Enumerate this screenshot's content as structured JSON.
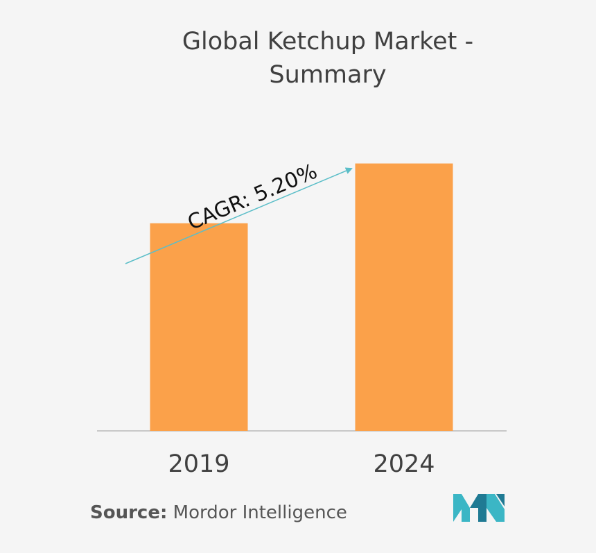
{
  "title": {
    "line1": "Global Ketchup Market -",
    "line2": "Summary"
  },
  "chart_data": {
    "type": "bar",
    "categories": [
      "2019",
      "2024"
    ],
    "values": [
      1.0,
      1.288
    ],
    "ylim": [
      0,
      1.3
    ],
    "title": "Global Ketchup Market - Summary",
    "annotation": "CAGR: 5.20%",
    "bar_color": "#fba14a",
    "arrow_color": "#5bbec8",
    "axis_color": "#c8c8c8",
    "grid": false
  },
  "source": {
    "label": "Source:",
    "text": "Mordor Intelligence"
  },
  "logo": {
    "icon": "mordor-intelligence-logo-icon",
    "colors": [
      "#3bb6c5",
      "#1f7a93"
    ]
  }
}
